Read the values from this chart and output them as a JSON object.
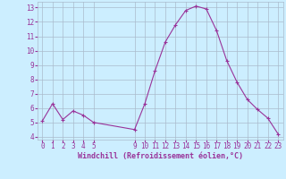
{
  "x": [
    0,
    1,
    2,
    3,
    4,
    5,
    9,
    10,
    11,
    12,
    13,
    14,
    15,
    16,
    17,
    18,
    19,
    20,
    21,
    22,
    23
  ],
  "y": [
    5.1,
    6.3,
    5.2,
    5.8,
    5.5,
    5.0,
    4.5,
    6.3,
    8.6,
    10.6,
    11.8,
    12.8,
    13.1,
    12.9,
    11.4,
    9.3,
    7.8,
    6.6,
    5.9,
    5.3,
    4.2
  ],
  "line_color": "#993399",
  "marker_color": "#993399",
  "bg_color": "#cceeff",
  "grid_color": "#aabbcc",
  "xlabel": "Windchill (Refroidissement éolien,°C)",
  "ylim": [
    3.8,
    13.4
  ],
  "xlim": [
    -0.5,
    23.5
  ],
  "yticks": [
    4,
    5,
    6,
    7,
    8,
    9,
    10,
    11,
    12,
    13
  ],
  "xticks": [
    0,
    1,
    2,
    3,
    4,
    5,
    9,
    10,
    11,
    12,
    13,
    14,
    15,
    16,
    17,
    18,
    19,
    20,
    21,
    22,
    23
  ],
  "font_color": "#993399",
  "font_size": 5.5,
  "xlabel_size": 6.0
}
